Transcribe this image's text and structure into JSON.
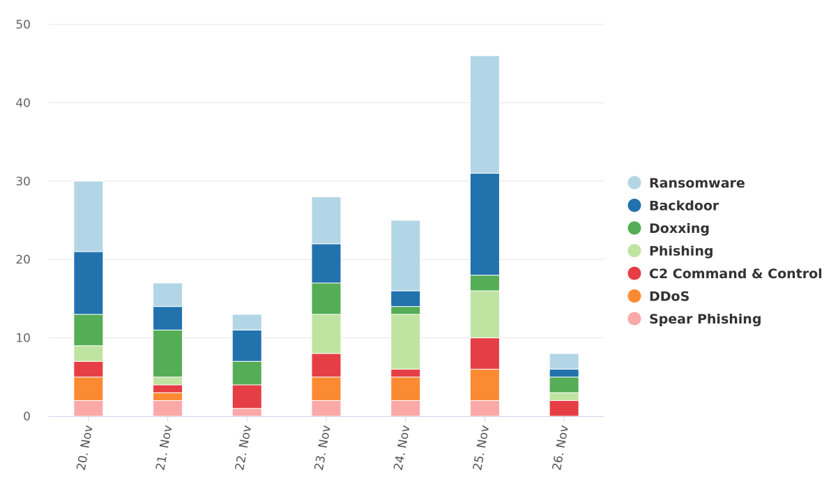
{
  "chart_data": {
    "type": "bar",
    "stacked": true,
    "categories": [
      "20. Nov",
      "21. Nov",
      "22. Nov",
      "23. Nov",
      "24. Nov",
      "25. Nov",
      "26. Nov"
    ],
    "series": [
      {
        "name": "Spear Phishing",
        "color": "#fba8a8",
        "values": [
          2,
          2,
          1,
          2,
          2,
          2,
          0
        ]
      },
      {
        "name": "DDoS",
        "color": "#fb8a32",
        "values": [
          3,
          1,
          0,
          3,
          3,
          4,
          0
        ]
      },
      {
        "name": "C2 Command & Control",
        "color": "#e53e45",
        "values": [
          2,
          1,
          3,
          3,
          1,
          4,
          2
        ]
      },
      {
        "name": "Phishing",
        "color": "#bfe3a0",
        "values": [
          2,
          1,
          0,
          5,
          7,
          6,
          1
        ]
      },
      {
        "name": "Doxxing",
        "color": "#55ad55",
        "values": [
          4,
          6,
          3,
          4,
          1,
          2,
          2
        ]
      },
      {
        "name": "Backdoor",
        "color": "#2272ad",
        "values": [
          8,
          3,
          4,
          5,
          2,
          13,
          1
        ]
      },
      {
        "name": "Ransomware",
        "color": "#b3d6e6",
        "values": [
          9,
          3,
          2,
          6,
          9,
          15,
          2
        ]
      }
    ],
    "legend_order": [
      "Ransomware",
      "Backdoor",
      "Doxxing",
      "Phishing",
      "C2 Command & Control",
      "DDoS",
      "Spear Phishing"
    ],
    "y_ticks": [
      "0",
      "10",
      "20",
      "30",
      "40",
      "50"
    ],
    "ylim": [
      0,
      50
    ],
    "grid": true,
    "legend_position": "right",
    "xlabel": "",
    "ylabel": "",
    "title": ""
  }
}
